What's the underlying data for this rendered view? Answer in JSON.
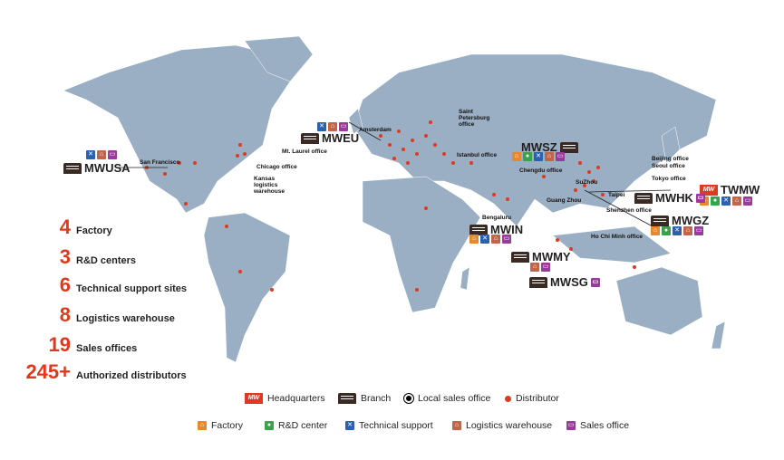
{
  "stats": [
    {
      "value": "4",
      "label": "Factory"
    },
    {
      "value": "3",
      "label": "R&D centers"
    },
    {
      "value": "6",
      "label": "Technical support sites"
    },
    {
      "value": "8",
      "label": "Logistics warehouse"
    },
    {
      "value": "19",
      "label": "Sales offices"
    },
    {
      "value": "245+",
      "label": "Authorized distributors"
    }
  ],
  "branches": {
    "mwusa": "MWUSA",
    "mweu": "MWEU",
    "mwsz": "MWSZ",
    "twmw": "TWMW",
    "mwhk": "MWHK",
    "mwgz": "MWGZ",
    "mwin": "MWIN",
    "mwmy": "MWMY",
    "mwsg": "MWSG"
  },
  "hq_logo": "MW",
  "places": {
    "san_francisco": "San Francisco",
    "mt_laurel": "Mt. Laurel office",
    "chicago": "Chicago office",
    "kansas": "Kansas logistics warehouse",
    "amsterdam": "Amsterdam",
    "saint_petersburg": "Saint Petersburg office",
    "istanbul": "Istanbul office",
    "chengdu": "Chengdu office",
    "suzhou": "SuZhou",
    "beijing": "Beijing office",
    "seoul": "Seoul office",
    "tokyo": "Tokyo office",
    "taipei": "Taipei",
    "guangzhou": "Guang Zhou",
    "shenzhen": "Shenzhen office",
    "ho_chi_minh": "Ho Chi Minh office",
    "bengaluru": "Bengaluru"
  },
  "legend": {
    "headquarters": "Headquarters",
    "branch": "Branch",
    "local_sales": "Local sales office",
    "distributor": "Distributor",
    "factory": "Factory",
    "rd": "R&D center",
    "tech": "Technical support",
    "logistics": "Logistics warehouse",
    "sales": "Sales office"
  },
  "colors": {
    "land": "#9aafc4",
    "distributor": "#e03a1e",
    "factory": "#e8882a",
    "rd": "#3aa24a",
    "tech": "#2a62b0",
    "logistics": "#c0654a",
    "sales": "#9a3a9a"
  }
}
